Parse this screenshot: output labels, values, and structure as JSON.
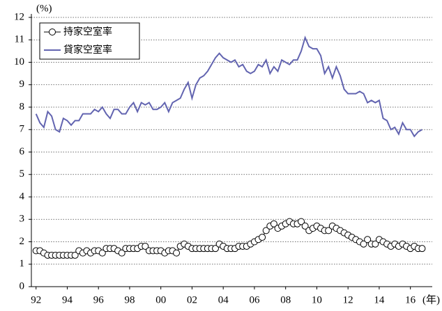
{
  "chart_data": {
    "type": "line",
    "y_label": "(%)",
    "x_label": "(年)",
    "x": [
      1992,
      1992.25,
      1992.5,
      1992.75,
      1993,
      1993.25,
      1993.5,
      1993.75,
      1994,
      1994.25,
      1994.5,
      1994.75,
      1995,
      1995.25,
      1995.5,
      1995.75,
      1996,
      1996.25,
      1996.5,
      1996.75,
      1997,
      1997.25,
      1997.5,
      1997.75,
      1998,
      1998.25,
      1998.5,
      1998.75,
      1999,
      1999.25,
      1999.5,
      1999.75,
      2000,
      2000.25,
      2000.5,
      2000.75,
      2001,
      2001.25,
      2001.5,
      2001.75,
      2002,
      2002.25,
      2002.5,
      2002.75,
      2003,
      2003.25,
      2003.5,
      2003.75,
      2004,
      2004.25,
      2004.5,
      2004.75,
      2005,
      2005.25,
      2005.5,
      2005.75,
      2006,
      2006.25,
      2006.5,
      2006.75,
      2007,
      2007.25,
      2007.5,
      2007.75,
      2008,
      2008.25,
      2008.5,
      2008.75,
      2009,
      2009.25,
      2009.5,
      2009.75,
      2010,
      2010.25,
      2010.5,
      2010.75,
      2011,
      2011.25,
      2011.5,
      2011.75,
      2012,
      2012.25,
      2012.5,
      2012.75,
      2013,
      2013.25,
      2013.5,
      2013.75,
      2014,
      2014.25,
      2014.5,
      2014.75,
      2015,
      2015.25,
      2015.5,
      2015.75,
      2016,
      2016.25,
      2016.5,
      2016.75
    ],
    "series": [
      {
        "name": "持家空室率",
        "color": "#000000",
        "marker": "circle",
        "values": [
          1.6,
          1.6,
          1.5,
          1.4,
          1.4,
          1.4,
          1.4,
          1.4,
          1.4,
          1.4,
          1.4,
          1.6,
          1.5,
          1.6,
          1.5,
          1.6,
          1.6,
          1.5,
          1.7,
          1.7,
          1.7,
          1.6,
          1.5,
          1.7,
          1.7,
          1.7,
          1.7,
          1.8,
          1.8,
          1.6,
          1.6,
          1.6,
          1.6,
          1.5,
          1.6,
          1.6,
          1.5,
          1.8,
          1.9,
          1.8,
          1.7,
          1.7,
          1.7,
          1.7,
          1.7,
          1.7,
          1.7,
          1.9,
          1.8,
          1.7,
          1.7,
          1.7,
          1.8,
          1.8,
          1.8,
          1.9,
          2.0,
          2.1,
          2.2,
          2.5,
          2.7,
          2.8,
          2.6,
          2.7,
          2.8,
          2.9,
          2.8,
          2.8,
          2.9,
          2.7,
          2.5,
          2.6,
          2.7,
          2.6,
          2.5,
          2.5,
          2.7,
          2.6,
          2.5,
          2.4,
          2.3,
          2.2,
          2.1,
          2.0,
          1.9,
          2.1,
          1.9,
          1.9,
          2.1,
          2.0,
          1.9,
          1.8,
          1.9,
          1.8,
          1.9,
          1.8,
          1.7,
          1.8,
          1.7,
          1.7
        ]
      },
      {
        "name": "貸家空室率",
        "color": "#6264b0",
        "values": [
          7.7,
          7.3,
          7.1,
          7.8,
          7.6,
          7.0,
          6.9,
          7.5,
          7.4,
          7.2,
          7.4,
          7.4,
          7.7,
          7.7,
          7.7,
          7.9,
          7.8,
          8.0,
          7.7,
          7.5,
          7.9,
          7.9,
          7.7,
          7.7,
          8.0,
          8.2,
          7.8,
          8.2,
          8.1,
          8.2,
          7.9,
          7.9,
          8.0,
          8.2,
          7.8,
          8.2,
          8.3,
          8.4,
          8.8,
          9.1,
          8.4,
          9.0,
          9.3,
          9.4,
          9.6,
          9.9,
          10.2,
          10.4,
          10.2,
          10.1,
          10.0,
          10.1,
          9.8,
          9.9,
          9.6,
          9.5,
          9.6,
          9.9,
          9.8,
          10.1,
          9.5,
          9.8,
          9.6,
          10.1,
          10.0,
          9.9,
          10.1,
          10.1,
          10.5,
          11.1,
          10.7,
          10.6,
          10.6,
          10.3,
          9.5,
          9.8,
          9.3,
          9.8,
          9.4,
          8.8,
          8.6,
          8.6,
          8.6,
          8.7,
          8.6,
          8.2,
          8.3,
          8.2,
          8.3,
          7.5,
          7.4,
          7.0,
          7.1,
          6.8,
          7.3,
          7.0,
          7.0,
          6.7,
          6.9,
          7.0
        ]
      }
    ],
    "xlim": [
      1991.7,
      2017.4
    ],
    "xticks": [
      {
        "value": 1992,
        "label": "92"
      },
      {
        "value": 1994,
        "label": "94"
      },
      {
        "value": 1996,
        "label": "96"
      },
      {
        "value": 1998,
        "label": "98"
      },
      {
        "value": 2000,
        "label": "00"
      },
      {
        "value": 2002,
        "label": "02"
      },
      {
        "value": 2004,
        "label": "04"
      },
      {
        "value": 2006,
        "label": "06"
      },
      {
        "value": 2008,
        "label": "08"
      },
      {
        "value": 2010,
        "label": "10"
      },
      {
        "value": 2012,
        "label": "12"
      },
      {
        "value": 2014,
        "label": "14"
      },
      {
        "value": 2016,
        "label": "16"
      }
    ],
    "ylim": [
      0,
      12
    ],
    "yticks": [
      0,
      1,
      2,
      3,
      4,
      5,
      6,
      7,
      8,
      9,
      10,
      11,
      12
    ],
    "grid": true,
    "legend": "upper-left"
  }
}
